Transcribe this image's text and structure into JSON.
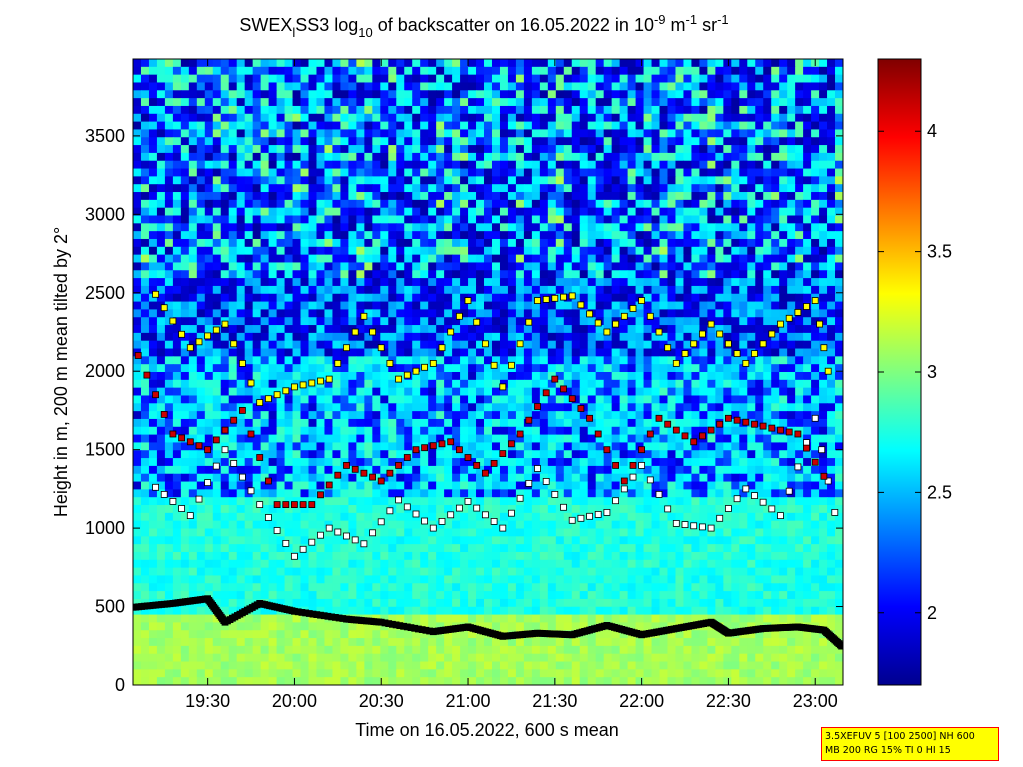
{
  "chart_data": {
    "type": "heatmap",
    "title": {
      "part1": "SWEX",
      "part1_sub": "l",
      "part2": "SS3 log",
      "part2_sub": "10",
      "part3": " of backscatter on 16.05.2022 in 10",
      "exp1": "-9",
      "part4": " m",
      "exp2": "-1",
      "part5": " sr",
      "exp3": "-1"
    },
    "xlabel": "Time on 16.05.2022, 600 s mean",
    "ylabel": "Height in m, 200 m mean tilted by 2°",
    "x_tick_labels": [
      "19:30",
      "20:00",
      "20:30",
      "21:00",
      "21:30",
      "22:00",
      "22:30",
      "23:00"
    ],
    "x_tick_hours": [
      19.5,
      20.0,
      20.5,
      21.0,
      21.5,
      22.0,
      22.5,
      23.0
    ],
    "xlim_hours": [
      19.07,
      23.16
    ],
    "y_ticks": [
      0,
      500,
      1000,
      1500,
      2000,
      2500,
      3000,
      3500
    ],
    "ylim": [
      0,
      3990
    ],
    "colorbar": {
      "ticks": [
        2,
        2.5,
        3,
        3.5,
        4
      ],
      "range": [
        1.7,
        4.3
      ],
      "colormap": "jet"
    },
    "layers": [
      {
        "name": "boundary layer top",
        "color": "#000000",
        "x": [
          19.07,
          19.3,
          19.5,
          19.6,
          19.8,
          20.0,
          20.3,
          20.5,
          20.8,
          21.0,
          21.2,
          21.4,
          21.6,
          21.8,
          22.0,
          22.2,
          22.4,
          22.5,
          22.7,
          22.9,
          23.05,
          23.16
        ],
        "y": [
          495,
          520,
          550,
          400,
          520,
          470,
          420,
          400,
          340,
          370,
          310,
          330,
          320,
          380,
          320,
          360,
          400,
          330,
          360,
          370,
          350,
          240
        ]
      },
      {
        "name": "aerosol layer",
        "color": "#ffffff",
        "x": [
          19.2,
          19.4,
          19.6,
          19.8,
          20.0,
          20.2,
          20.4,
          20.6,
          20.8,
          21.0,
          21.2,
          21.4,
          21.6,
          21.8,
          22.0,
          22.2,
          22.4,
          22.6,
          22.8,
          23.0,
          23.15
        ],
        "y": [
          1260,
          1080,
          1500,
          1150,
          820,
          1000,
          900,
          1180,
          1000,
          1170,
          1000,
          1380,
          1050,
          1100,
          1400,
          1030,
          1000,
          1250,
          1080,
          1700,
          900
        ]
      },
      {
        "name": "cloud base",
        "color": "#cc0000",
        "x": [
          19.1,
          19.3,
          19.5,
          19.7,
          19.9,
          20.1,
          20.3,
          20.5,
          20.7,
          20.9,
          21.1,
          21.3,
          21.5,
          21.7,
          21.9,
          22.1,
          22.3,
          22.5,
          22.7,
          22.9,
          23.1
        ],
        "y": [
          2100,
          1600,
          1500,
          1750,
          1150,
          1150,
          1400,
          1300,
          1500,
          1550,
          1350,
          1600,
          1950,
          1700,
          1300,
          1700,
          1550,
          1700,
          1650,
          1600,
          1240
        ]
      },
      {
        "name": "upper layer",
        "color": "#ffff00",
        "x": [
          19.2,
          19.4,
          19.6,
          19.8,
          20.0,
          20.2,
          20.4,
          20.6,
          20.8,
          21.0,
          21.2,
          21.4,
          21.6,
          21.8,
          22.0,
          22.2,
          22.4,
          22.6,
          22.8,
          23.0,
          23.1
        ],
        "y": [
          2490,
          2150,
          2300,
          1800,
          1900,
          1950,
          2350,
          1950,
          2050,
          2450,
          1900,
          2450,
          2480,
          2250,
          2450,
          2050,
          2300,
          2050,
          2300,
          2450,
          1850
        ]
      }
    ]
  },
  "note": {
    "line1": "3.5XEFUV 5 [100 2500] NH 600",
    "line2": "MB 200 RG 15% TI 0 HI 15"
  },
  "colors": {
    "note_bg": "#ffff00",
    "note_border": "#ff0000"
  }
}
